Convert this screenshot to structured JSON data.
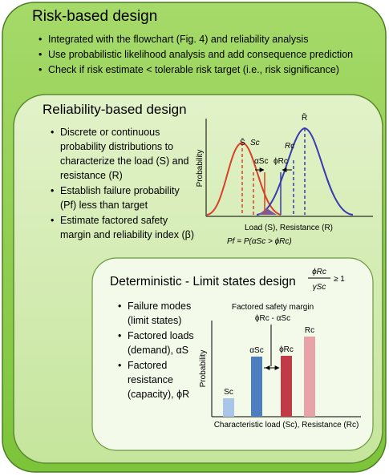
{
  "risk_based": {
    "title": "Risk-based design",
    "bullets": [
      "Integrated with the flowchart (Fig. 4) and reliability analysis",
      "Use probabilistic likelihood analysis and add consequence prediction",
      "Check if risk estimate < tolerable risk target (i.e., risk significance)"
    ]
  },
  "reliability_based": {
    "title": "Reliability-based design",
    "bullets": [
      "Discrete or continuous probability distributions to characterize the load (S) and resistance (R)",
      "Establish failure probability (Pf) less than target",
      "Estimate factored safety margin and reliability index (β)"
    ],
    "chart": {
      "y_label": "Probability",
      "x_label": "Load (S), Resistance (R)",
      "mean_s": "S̄",
      "s_c": "Sc",
      "mean_r": "R̄",
      "r_c": "Rc",
      "alpha_s": "αSc",
      "phi_r": "ϕRc",
      "formula": "Pf = P(αSc > ϕRc)"
    }
  },
  "deterministic": {
    "title": "Deterministic - Limit states design",
    "criterion_num": "ϕRc",
    "criterion_den": "γSc",
    "criterion_rel": "≥ 1",
    "bullets": [
      "Failure modes (limit states)",
      "Factored loads (demand), αS",
      "Factored resistance (capacity), ϕR"
    ],
    "chart": {
      "y_label": "Probability",
      "x_label": "Characteristic load (Sc), Resistance (Rc)",
      "annotation": "Factored safety margin",
      "margin": "ϕRc - αSc",
      "bar_labels": [
        "Sc",
        "αSc",
        "ϕRc",
        "Rc"
      ]
    }
  }
}
